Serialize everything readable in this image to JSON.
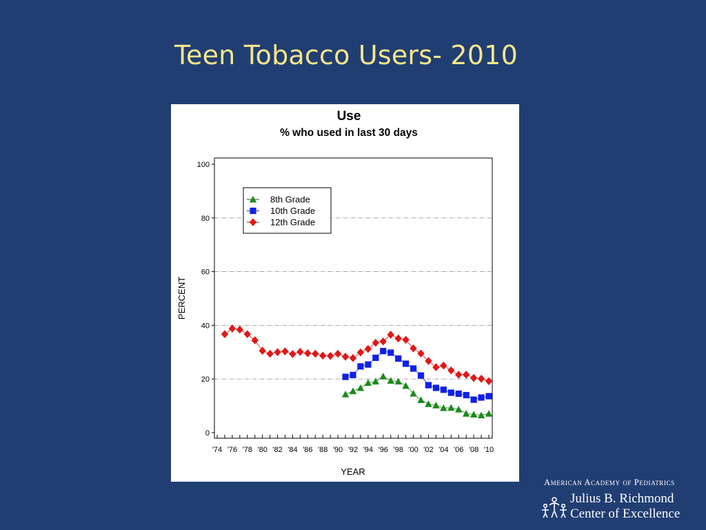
{
  "slide": {
    "title": "Teen Tobacco Users- 2010"
  },
  "logo": {
    "org": "American Academy of Pediatrics",
    "line1": "Julius B. Richmond",
    "line2": "Center of Excellence"
  },
  "chart_data": {
    "type": "line",
    "title": "Use",
    "subtitle": "% who used in last 30 days",
    "xlabel": "YEAR",
    "ylabel": "PERCENT",
    "xlim": [
      1974,
      2010
    ],
    "ylim": [
      0,
      100
    ],
    "y_ticks": [
      0,
      20,
      40,
      60,
      80,
      100
    ],
    "x_ticks": [
      {
        "year": 1974,
        "label": "'74"
      },
      {
        "year": 1976,
        "label": "'76"
      },
      {
        "year": 1978,
        "label": "'78"
      },
      {
        "year": 1980,
        "label": "'80"
      },
      {
        "year": 1982,
        "label": "'82"
      },
      {
        "year": 1984,
        "label": "'84"
      },
      {
        "year": 1986,
        "label": "'86"
      },
      {
        "year": 1988,
        "label": "'88"
      },
      {
        "year": 1990,
        "label": "'90"
      },
      {
        "year": 1992,
        "label": "'92"
      },
      {
        "year": 1994,
        "label": "'94"
      },
      {
        "year": 1996,
        "label": "'96"
      },
      {
        "year": 1998,
        "label": "'98"
      },
      {
        "year": 2000,
        "label": "'00"
      },
      {
        "year": 2002,
        "label": "'02"
      },
      {
        "year": 2004,
        "label": "'04"
      },
      {
        "year": 2006,
        "label": "'06"
      },
      {
        "year": 2008,
        "label": "'08"
      },
      {
        "year": 2010,
        "label": "'10"
      }
    ],
    "grid": "horizontal dashed",
    "legend": "top-left",
    "series": [
      {
        "name": "8th Grade",
        "color": "#1b8a1b",
        "marker": "triangle",
        "x": [
          1991,
          1992,
          1993,
          1994,
          1995,
          1996,
          1997,
          1998,
          1999,
          2000,
          2001,
          2002,
          2003,
          2004,
          2005,
          2006,
          2007,
          2008,
          2009,
          2010
        ],
        "y": [
          14.3,
          15.5,
          16.7,
          18.6,
          19.1,
          21.0,
          19.4,
          19.1,
          17.5,
          14.6,
          12.2,
          10.7,
          10.2,
          9.2,
          9.3,
          8.7,
          7.1,
          6.8,
          6.5,
          7.1
        ]
      },
      {
        "name": "10th Grade",
        "color": "#1020e8",
        "marker": "square",
        "x": [
          1991,
          1992,
          1993,
          1994,
          1995,
          1996,
          1997,
          1998,
          1999,
          2000,
          2001,
          2002,
          2003,
          2004,
          2005,
          2006,
          2007,
          2008,
          2009,
          2010
        ],
        "y": [
          20.8,
          21.5,
          24.7,
          25.4,
          27.9,
          30.4,
          29.8,
          27.6,
          25.7,
          23.9,
          21.3,
          17.7,
          16.7,
          16.0,
          14.9,
          14.5,
          14.0,
          12.3,
          13.1,
          13.6
        ]
      },
      {
        "name": "12th Grade",
        "color": "#e01818",
        "marker": "diamond",
        "x": [
          1975,
          1976,
          1977,
          1978,
          1979,
          1980,
          1981,
          1982,
          1983,
          1984,
          1985,
          1986,
          1987,
          1988,
          1989,
          1990,
          1991,
          1992,
          1993,
          1994,
          1995,
          1996,
          1997,
          1998,
          1999,
          2000,
          2001,
          2002,
          2003,
          2004,
          2005,
          2006,
          2007,
          2008,
          2009,
          2010
        ],
        "y": [
          36.7,
          38.8,
          38.4,
          36.7,
          34.4,
          30.5,
          29.4,
          30.0,
          30.3,
          29.3,
          30.1,
          29.6,
          29.4,
          28.7,
          28.6,
          29.4,
          28.3,
          27.8,
          29.9,
          31.2,
          33.5,
          34.0,
          36.5,
          35.1,
          34.6,
          31.4,
          29.5,
          26.7,
          24.4,
          25.0,
          23.2,
          21.6,
          21.6,
          20.4,
          20.1,
          19.2
        ]
      }
    ]
  }
}
